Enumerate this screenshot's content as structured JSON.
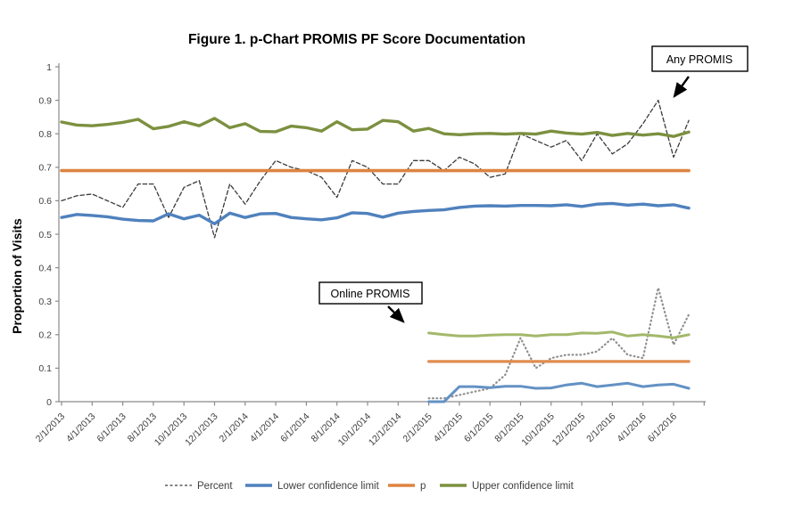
{
  "title": "Figure 1. p-Chart PROMIS PF Score Documentation",
  "y_axis": {
    "label": "Proportion of Visits",
    "min": 0,
    "max": 1,
    "tick_step": 0.1,
    "tick_labels": [
      "0",
      "0.1",
      "0.2",
      "0.3",
      "0.4",
      "0.5",
      "0.6",
      "0.7",
      "0.8",
      "0.9",
      "1"
    ]
  },
  "x_axis": {
    "tick_labels": [
      "2/1/2013",
      "4/1/2013",
      "6/1/2013",
      "8/1/2013",
      "10/1/2013",
      "12/1/2013",
      "2/1/2014",
      "4/1/2014",
      "6/1/2014",
      "8/1/2014",
      "10/1/2014",
      "12/1/2014",
      "2/1/2015",
      "4/1/2015",
      "6/1/2015",
      "8/1/2015",
      "10/1/2015",
      "12/1/2015",
      "2/1/2016",
      "4/1/2016",
      "6/1/2016"
    ]
  },
  "annotations": [
    {
      "label": "Any PROMIS"
    },
    {
      "label": "Online PROMIS"
    }
  ],
  "legend": {
    "items": [
      {
        "label": "Percent",
        "style": "dashed",
        "color": "#3a3a3a"
      },
      {
        "label": "Lower confidence limit",
        "style": "solid",
        "color": "#4f81bd"
      },
      {
        "label": "p",
        "style": "solid",
        "color": "#dd8442"
      },
      {
        "label": "Upper confidence limit",
        "style": "solid",
        "color": "#7c9040"
      }
    ]
  },
  "colors": {
    "axis": "#8a8a8a",
    "percent_any": "#3a3a3a",
    "lcl_any": "#4f81bd",
    "p_any": "#dd8442",
    "ucl_any": "#7c9040",
    "percent_online": "#8f8f8f",
    "lcl_online": "#6391c4",
    "p_online": "#df8c4e",
    "ucl_online": "#a3b86a"
  },
  "chart_data": {
    "type": "line",
    "title": "Figure 1. p-Chart PROMIS PF Score Documentation",
    "xlabel": "",
    "ylabel": "Proportion of Visits",
    "ylim": [
      0,
      1
    ],
    "grid": false,
    "legend_position": "bottom",
    "x": [
      "2/1/2013",
      "3/1/2013",
      "4/1/2013",
      "5/1/2013",
      "6/1/2013",
      "7/1/2013",
      "8/1/2013",
      "9/1/2013",
      "10/1/2013",
      "11/1/2013",
      "12/1/2013",
      "1/1/2014",
      "2/1/2014",
      "3/1/2014",
      "4/1/2014",
      "5/1/2014",
      "6/1/2014",
      "7/1/2014",
      "8/1/2014",
      "9/1/2014",
      "10/1/2014",
      "11/1/2014",
      "12/1/2014",
      "1/1/2015",
      "2/1/2015",
      "3/1/2015",
      "4/1/2015",
      "5/1/2015",
      "6/1/2015",
      "7/1/2015",
      "8/1/2015",
      "9/1/2015",
      "10/1/2015",
      "11/1/2015",
      "12/1/2015",
      "1/1/2016",
      "2/1/2016",
      "3/1/2016",
      "4/1/2016",
      "5/1/2016",
      "6/1/2016",
      "7/1/2016"
    ],
    "series": [
      {
        "name": "Percent",
        "group": "Any PROMIS",
        "style": "dashed",
        "color": "#3a3a3a",
        "width": 1.3,
        "start_index": 0,
        "values": [
          0.6,
          0.615,
          0.62,
          0.6,
          0.58,
          0.65,
          0.65,
          0.55,
          0.64,
          0.66,
          0.49,
          0.65,
          0.59,
          0.66,
          0.72,
          0.7,
          0.69,
          0.67,
          0.61,
          0.72,
          0.7,
          0.65,
          0.65,
          0.72,
          0.72,
          0.69,
          0.73,
          0.71,
          0.67,
          0.68,
          0.8,
          0.78,
          0.76,
          0.78,
          0.72,
          0.8,
          0.74,
          0.77,
          0.83,
          0.9,
          0.73,
          0.84
        ]
      },
      {
        "name": "Lower confidence limit",
        "group": "Any PROMIS",
        "style": "solid",
        "color": "#4f81bd",
        "width": 3.4,
        "start_index": 0,
        "values": [
          0.55,
          0.559,
          0.556,
          0.552,
          0.545,
          0.541,
          0.54,
          0.561,
          0.546,
          0.557,
          0.531,
          0.563,
          0.55,
          0.561,
          0.562,
          0.55,
          0.546,
          0.543,
          0.549,
          0.564,
          0.562,
          0.551,
          0.563,
          0.568,
          0.571,
          0.573,
          0.58,
          0.584,
          0.585,
          0.584,
          0.586,
          0.586,
          0.585,
          0.588,
          0.583,
          0.59,
          0.592,
          0.587,
          0.59,
          0.585,
          0.588,
          0.578
        ]
      },
      {
        "name": "p",
        "group": "Any PROMIS",
        "style": "solid",
        "color": "#dd8442",
        "width": 3.6,
        "start_index": 0,
        "values": [
          0.69,
          0.69,
          0.69,
          0.69,
          0.69,
          0.69,
          0.69,
          0.69,
          0.69,
          0.69,
          0.69,
          0.69,
          0.69,
          0.69,
          0.69,
          0.69,
          0.69,
          0.69,
          0.69,
          0.69,
          0.69,
          0.69,
          0.69,
          0.69,
          0.69,
          0.69,
          0.69,
          0.69,
          0.69,
          0.69,
          0.69,
          0.69,
          0.69,
          0.69,
          0.69,
          0.69,
          0.69,
          0.69,
          0.69,
          0.69,
          0.69,
          0.69
        ]
      },
      {
        "name": "Upper confidence limit",
        "group": "Any PROMIS",
        "style": "solid",
        "color": "#7c9040",
        "width": 3.4,
        "start_index": 0,
        "values": [
          0.835,
          0.826,
          0.824,
          0.828,
          0.834,
          0.843,
          0.815,
          0.822,
          0.836,
          0.824,
          0.846,
          0.818,
          0.83,
          0.807,
          0.806,
          0.823,
          0.818,
          0.808,
          0.836,
          0.812,
          0.814,
          0.84,
          0.836,
          0.808,
          0.816,
          0.8,
          0.797,
          0.8,
          0.801,
          0.799,
          0.801,
          0.799,
          0.808,
          0.802,
          0.799,
          0.804,
          0.795,
          0.801,
          0.796,
          0.8,
          0.792,
          0.805
        ]
      },
      {
        "name": "Percent",
        "group": "Online PROMIS",
        "style": "dotted",
        "color": "#8f8f8f",
        "width": 2.2,
        "start_index": 24,
        "values": [
          0.01,
          0.01,
          0.02,
          0.03,
          0.04,
          0.08,
          0.19,
          0.1,
          0.13,
          0.14,
          0.14,
          0.15,
          0.19,
          0.14,
          0.13,
          0.34,
          0.17,
          0.26
        ]
      },
      {
        "name": "Lower confidence limit",
        "group": "Online PROMIS",
        "style": "solid",
        "color": "#6391c4",
        "width": 3.0,
        "start_index": 24,
        "values": [
          0.0,
          0.0,
          0.045,
          0.045,
          0.042,
          0.046,
          0.046,
          0.04,
          0.041,
          0.05,
          0.055,
          0.045,
          0.05,
          0.055,
          0.045,
          0.05,
          0.052,
          0.04
        ]
      },
      {
        "name": "p",
        "group": "Online PROMIS",
        "style": "solid",
        "color": "#df8c4e",
        "width": 3.2,
        "start_index": 24,
        "values": [
          0.12,
          0.12,
          0.12,
          0.12,
          0.12,
          0.12,
          0.12,
          0.12,
          0.12,
          0.12,
          0.12,
          0.12,
          0.12,
          0.12,
          0.12,
          0.12,
          0.12,
          0.12
        ]
      },
      {
        "name": "Upper confidence limit",
        "group": "Online PROMIS",
        "style": "solid",
        "color": "#a3b86a",
        "width": 3.0,
        "start_index": 24,
        "values": [
          0.205,
          0.2,
          0.196,
          0.196,
          0.199,
          0.2,
          0.2,
          0.196,
          0.2,
          0.2,
          0.205,
          0.204,
          0.208,
          0.196,
          0.2,
          0.196,
          0.191,
          0.2
        ]
      }
    ]
  }
}
